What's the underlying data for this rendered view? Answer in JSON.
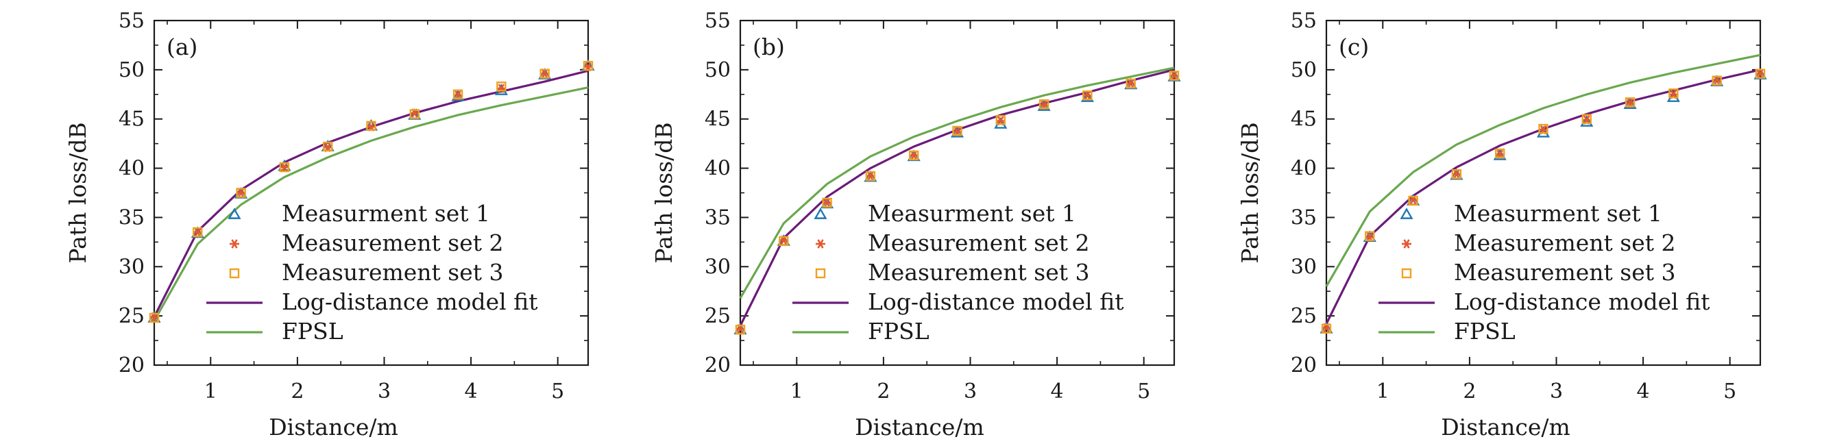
{
  "chart_data": [
    {
      "type": "line",
      "panel_label": "(a)",
      "xlabel": "Distance/m",
      "ylabel": "Path loss/dB",
      "xlim": [
        0.35,
        5.35
      ],
      "ylim": [
        20,
        55
      ],
      "xticks": [
        "1",
        "2",
        "3",
        "4",
        "5"
      ],
      "yticks": [
        "20",
        "25",
        "30",
        "35",
        "40",
        "45",
        "50",
        "55"
      ],
      "legend_position": "lower-right",
      "series": [
        {
          "name": "Measurment set 1",
          "kind": "marker",
          "marker": "triangle",
          "color": "#1f77b4",
          "x": [
            0.35,
            0.85,
            1.35,
            1.85,
            2.35,
            2.85,
            3.35,
            3.85,
            4.35,
            4.85,
            5.35
          ],
          "y": [
            24.8,
            33.4,
            37.4,
            40.2,
            42.2,
            44.3,
            45.4,
            47.3,
            47.9,
            49.5,
            50.4
          ]
        },
        {
          "name": "Measurement set 2",
          "kind": "marker",
          "marker": "asterisk",
          "color": "#e4572e",
          "x": [
            0.35,
            0.85,
            1.35,
            1.85,
            2.35,
            2.85,
            3.35,
            3.85,
            4.35,
            4.85,
            5.35
          ],
          "y": [
            24.9,
            33.5,
            37.5,
            40.1,
            42.1,
            44.2,
            45.6,
            47.4,
            48.1,
            49.6,
            50.3
          ]
        },
        {
          "name": "Measurement set 3",
          "kind": "marker",
          "marker": "square",
          "color": "#f0a020",
          "x": [
            0.35,
            0.85,
            1.35,
            1.85,
            2.35,
            2.85,
            3.35,
            3.85,
            4.35,
            4.85,
            5.35
          ],
          "y": [
            24.8,
            33.5,
            37.5,
            40.1,
            42.2,
            44.3,
            45.5,
            47.5,
            48.3,
            49.6,
            50.4
          ]
        },
        {
          "name": "Log-distance model fit",
          "kind": "line",
          "color": "#6a1b7a",
          "x": [
            0.35,
            0.85,
            1.35,
            1.85,
            2.35,
            2.85,
            3.35,
            3.85,
            4.35,
            4.85,
            5.35
          ],
          "y": [
            24.9,
            33.6,
            37.8,
            40.6,
            42.6,
            44.2,
            45.6,
            46.8,
            47.8,
            48.8,
            49.9
          ]
        },
        {
          "name": "FPSL",
          "kind": "line",
          "color": "#6aa84f",
          "x": [
            0.35,
            0.85,
            1.35,
            1.85,
            2.35,
            2.85,
            3.35,
            3.85,
            4.35,
            4.85,
            5.35
          ],
          "y": [
            24.5,
            32.3,
            36.3,
            39.1,
            41.1,
            42.8,
            44.2,
            45.4,
            46.4,
            47.3,
            48.2
          ]
        }
      ]
    },
    {
      "type": "line",
      "panel_label": "(b)",
      "xlabel": "Distance/m",
      "ylabel": "Path loss/dB",
      "xlim": [
        0.35,
        5.35
      ],
      "ylim": [
        20,
        55
      ],
      "xticks": [
        "1",
        "2",
        "3",
        "4",
        "5"
      ],
      "yticks": [
        "20",
        "25",
        "30",
        "35",
        "40",
        "45",
        "50",
        "55"
      ],
      "legend_position": "lower-right",
      "series": [
        {
          "name": "Measurment set 1",
          "kind": "marker",
          "marker": "triangle",
          "color": "#1f77b4",
          "x": [
            0.35,
            0.85,
            1.35,
            1.85,
            2.35,
            2.85,
            3.35,
            3.85,
            4.35,
            4.85,
            5.35
          ],
          "y": [
            23.6,
            32.6,
            36.4,
            39.1,
            41.2,
            43.6,
            44.5,
            46.3,
            47.2,
            48.5,
            49.3
          ]
        },
        {
          "name": "Measurement set 2",
          "kind": "marker",
          "marker": "asterisk",
          "color": "#e4572e",
          "x": [
            0.35,
            0.85,
            1.35,
            1.85,
            2.35,
            2.85,
            3.35,
            3.85,
            4.35,
            4.85,
            5.35
          ],
          "y": [
            23.7,
            32.7,
            36.5,
            39.2,
            41.3,
            43.7,
            44.8,
            46.4,
            47.4,
            48.6,
            49.4
          ]
        },
        {
          "name": "Measurement set 3",
          "kind": "marker",
          "marker": "square",
          "color": "#f0a020",
          "x": [
            0.35,
            0.85,
            1.35,
            1.85,
            2.35,
            2.85,
            3.35,
            3.85,
            4.35,
            4.85,
            5.35
          ],
          "y": [
            23.6,
            32.6,
            36.5,
            39.2,
            41.3,
            43.8,
            44.9,
            46.5,
            47.4,
            48.6,
            49.4
          ]
        },
        {
          "name": "Log-distance model fit",
          "kind": "line",
          "color": "#6a1b7a",
          "x": [
            0.35,
            0.85,
            1.35,
            1.85,
            2.35,
            2.85,
            3.35,
            3.85,
            4.35,
            4.85,
            5.35
          ],
          "y": [
            24.0,
            32.9,
            37.1,
            40.0,
            42.2,
            43.9,
            45.4,
            46.6,
            47.7,
            48.9,
            50.0
          ]
        },
        {
          "name": "FPSL",
          "kind": "line",
          "color": "#6aa84f",
          "x": [
            0.35,
            0.85,
            1.35,
            1.85,
            2.35,
            2.85,
            3.35,
            3.85,
            4.35,
            4.85,
            5.35
          ],
          "y": [
            26.8,
            34.4,
            38.4,
            41.2,
            43.2,
            44.8,
            46.2,
            47.4,
            48.4,
            49.3,
            50.2
          ]
        }
      ]
    },
    {
      "type": "line",
      "panel_label": "(c)",
      "xlabel": "Distance/m",
      "ylabel": "Path loss/dB",
      "xlim": [
        0.35,
        5.35
      ],
      "ylim": [
        20,
        55
      ],
      "xticks": [
        "1",
        "2",
        "3",
        "4",
        "5"
      ],
      "yticks": [
        "20",
        "25",
        "30",
        "35",
        "40",
        "45",
        "50",
        "55"
      ],
      "legend_position": "lower-right",
      "series": [
        {
          "name": "Measurment set 1",
          "kind": "marker",
          "marker": "triangle",
          "color": "#1f77b4",
          "x": [
            0.35,
            0.85,
            1.35,
            1.85,
            2.35,
            2.85,
            3.35,
            3.85,
            4.35,
            4.85,
            5.35
          ],
          "y": [
            23.7,
            33.0,
            36.7,
            39.3,
            41.3,
            43.6,
            44.7,
            46.5,
            47.2,
            48.8,
            49.5
          ]
        },
        {
          "name": "Measurement set 2",
          "kind": "marker",
          "marker": "asterisk",
          "color": "#e4572e",
          "x": [
            0.35,
            0.85,
            1.35,
            1.85,
            2.35,
            2.85,
            3.35,
            3.85,
            4.35,
            4.85,
            5.35
          ],
          "y": [
            23.8,
            33.0,
            36.8,
            39.4,
            41.4,
            43.9,
            44.9,
            46.6,
            47.5,
            48.9,
            49.6
          ]
        },
        {
          "name": "Measurement set 3",
          "kind": "marker",
          "marker": "square",
          "color": "#f0a020",
          "x": [
            0.35,
            0.85,
            1.35,
            1.85,
            2.35,
            2.85,
            3.35,
            3.85,
            4.35,
            4.85,
            5.35
          ],
          "y": [
            23.7,
            33.1,
            36.7,
            39.4,
            41.5,
            44.0,
            45.0,
            46.7,
            47.6,
            48.9,
            49.6
          ]
        },
        {
          "name": "Log-distance model fit",
          "kind": "line",
          "color": "#6a1b7a",
          "x": [
            0.35,
            0.85,
            1.35,
            1.85,
            2.35,
            2.85,
            3.35,
            3.85,
            4.35,
            4.85,
            5.35
          ],
          "y": [
            24.2,
            33.1,
            37.2,
            40.1,
            42.3,
            44.0,
            45.5,
            46.8,
            47.9,
            49.0,
            50.0
          ]
        },
        {
          "name": "FPSL",
          "kind": "line",
          "color": "#6aa84f",
          "x": [
            0.35,
            0.85,
            1.35,
            1.85,
            2.35,
            2.85,
            3.35,
            3.85,
            4.35,
            4.85,
            5.35
          ],
          "y": [
            28.0,
            35.6,
            39.6,
            42.4,
            44.4,
            46.1,
            47.5,
            48.7,
            49.7,
            50.6,
            51.5
          ]
        }
      ]
    }
  ]
}
